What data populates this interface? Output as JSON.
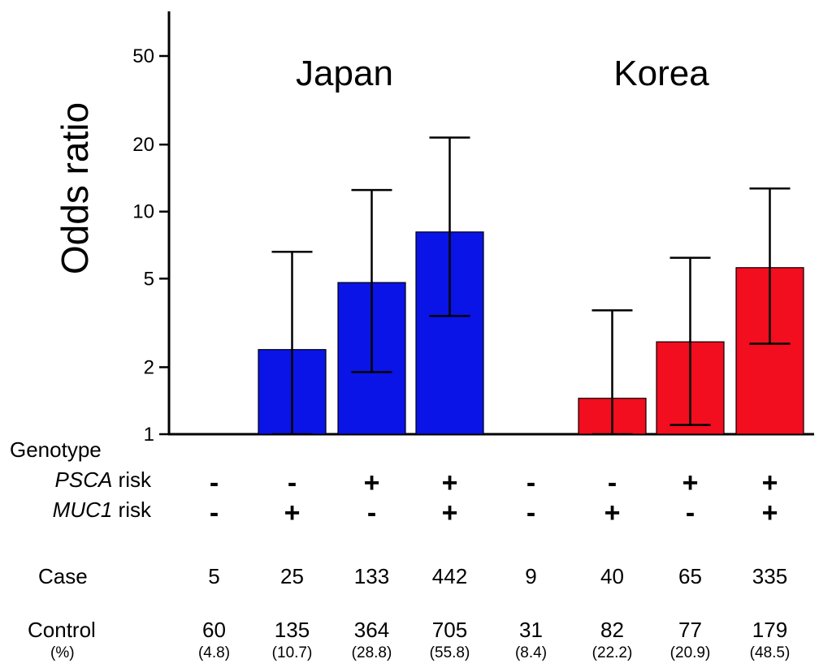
{
  "chart_data": {
    "type": "bar",
    "ylabel": "Odds ratio",
    "yscale": "log",
    "ylim": [
      1,
      70
    ],
    "yticks": [
      1,
      2,
      5,
      10,
      20,
      50
    ],
    "groups": [
      {
        "name": "Japan",
        "color": "#0a14e6",
        "bars": [
          {
            "psca": "-",
            "muc1": "-",
            "or": 1.0,
            "ci_low": null,
            "ci_high": null,
            "case": "5",
            "control": "60",
            "pct": "(4.8)"
          },
          {
            "psca": "-",
            "muc1": "+",
            "or": 2.4,
            "ci_low": 1.0,
            "ci_high": 6.6,
            "case": "25",
            "control": "135",
            "pct": "(10.7)"
          },
          {
            "psca": "+",
            "muc1": "-",
            "or": 4.8,
            "ci_low": 1.9,
            "ci_high": 12.5,
            "case": "133",
            "control": "364",
            "pct": "(28.8)"
          },
          {
            "psca": "+",
            "muc1": "+",
            "or": 8.1,
            "ci_low": 3.4,
            "ci_high": 21.5,
            "case": "442",
            "control": "705",
            "pct": "(55.8)"
          }
        ]
      },
      {
        "name": "Korea",
        "color": "#f20d1f",
        "bars": [
          {
            "psca": "-",
            "muc1": "-",
            "or": 1.0,
            "ci_low": null,
            "ci_high": null,
            "case": "9",
            "control": "31",
            "pct": "(8.4)"
          },
          {
            "psca": "-",
            "muc1": "+",
            "or": 1.45,
            "ci_low": 1.0,
            "ci_high": 3.6,
            "case": "40",
            "control": "82",
            "pct": "(22.2)"
          },
          {
            "psca": "+",
            "muc1": "-",
            "or": 2.6,
            "ci_low": 1.1,
            "ci_high": 6.2,
            "case": "65",
            "control": "77",
            "pct": "(20.9)"
          },
          {
            "psca": "+",
            "muc1": "+",
            "or": 5.6,
            "ci_low": 2.55,
            "ci_high": 12.7,
            "case": "335",
            "control": "179",
            "pct": "(48.5)"
          }
        ]
      }
    ]
  },
  "labels": {
    "genotype": "Genotype",
    "psca_gene": "PSCA",
    "muc1_gene": "MUC1",
    "risk_suffix": " risk",
    "case": "Case",
    "control": "Control",
    "pct": "(%)"
  }
}
